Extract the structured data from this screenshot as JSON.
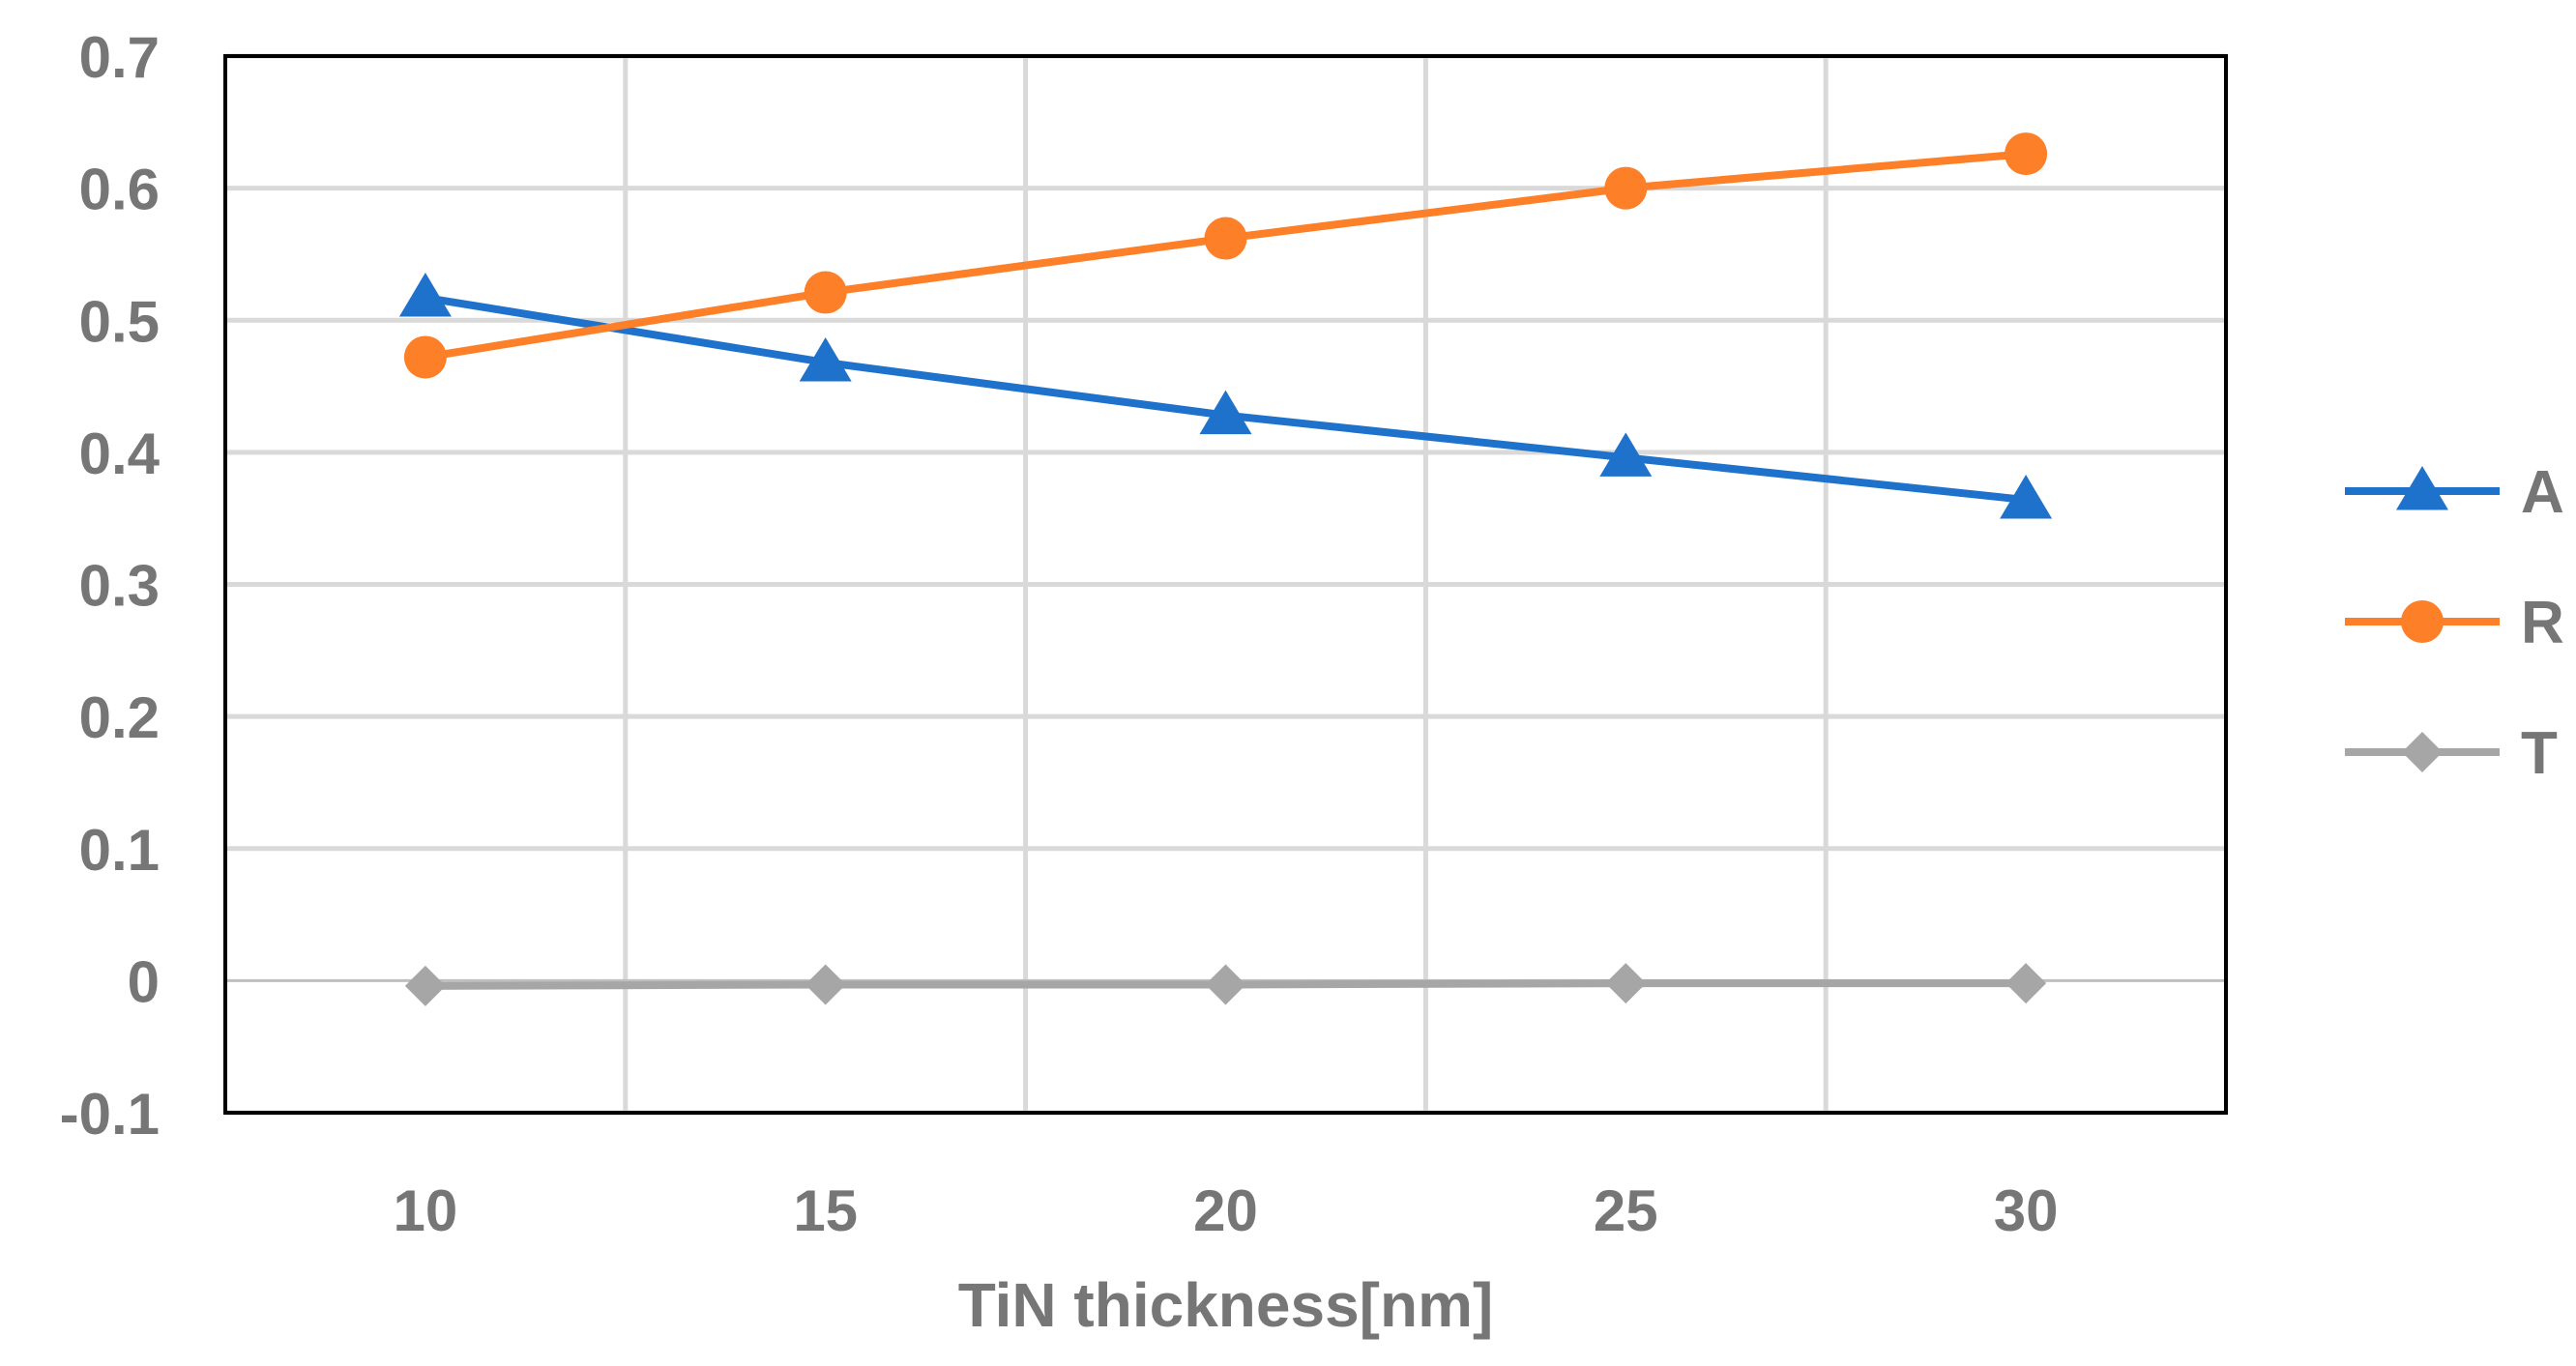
{
  "chart_data": {
    "type": "line",
    "title": "",
    "xlabel": "TiN thickness[nm]",
    "ylabel": "",
    "x": [
      10,
      15,
      20,
      25,
      30
    ],
    "x_ticks": [
      "10",
      "15",
      "20",
      "25",
      "30"
    ],
    "xlim": [
      7.5,
      32.5
    ],
    "y_ticks": [
      "0.7",
      "0.6",
      "0.5",
      "0.4",
      "0.3",
      "0.2",
      "0.1",
      "0",
      "-0.1"
    ],
    "y_tick_values": [
      0.7,
      0.6,
      0.5,
      0.4,
      0.3,
      0.2,
      0.1,
      0,
      -0.1
    ],
    "ylim": [
      -0.1,
      0.7
    ],
    "grid": true,
    "legend_position": "right",
    "series": [
      {
        "name": "A",
        "values": [
          0.517,
          0.468,
          0.428,
          0.396,
          0.364
        ],
        "color": "#1f72cc",
        "marker": "triangle"
      },
      {
        "name": "R",
        "values": [
          0.472,
          0.521,
          0.562,
          0.6,
          0.626
        ],
        "color": "#fd7f28",
        "marker": "circle"
      },
      {
        "name": "T",
        "values": [
          -0.004,
          -0.003,
          -0.003,
          -0.002,
          -0.002
        ],
        "color": "#a6a6a6",
        "marker": "diamond"
      }
    ]
  }
}
